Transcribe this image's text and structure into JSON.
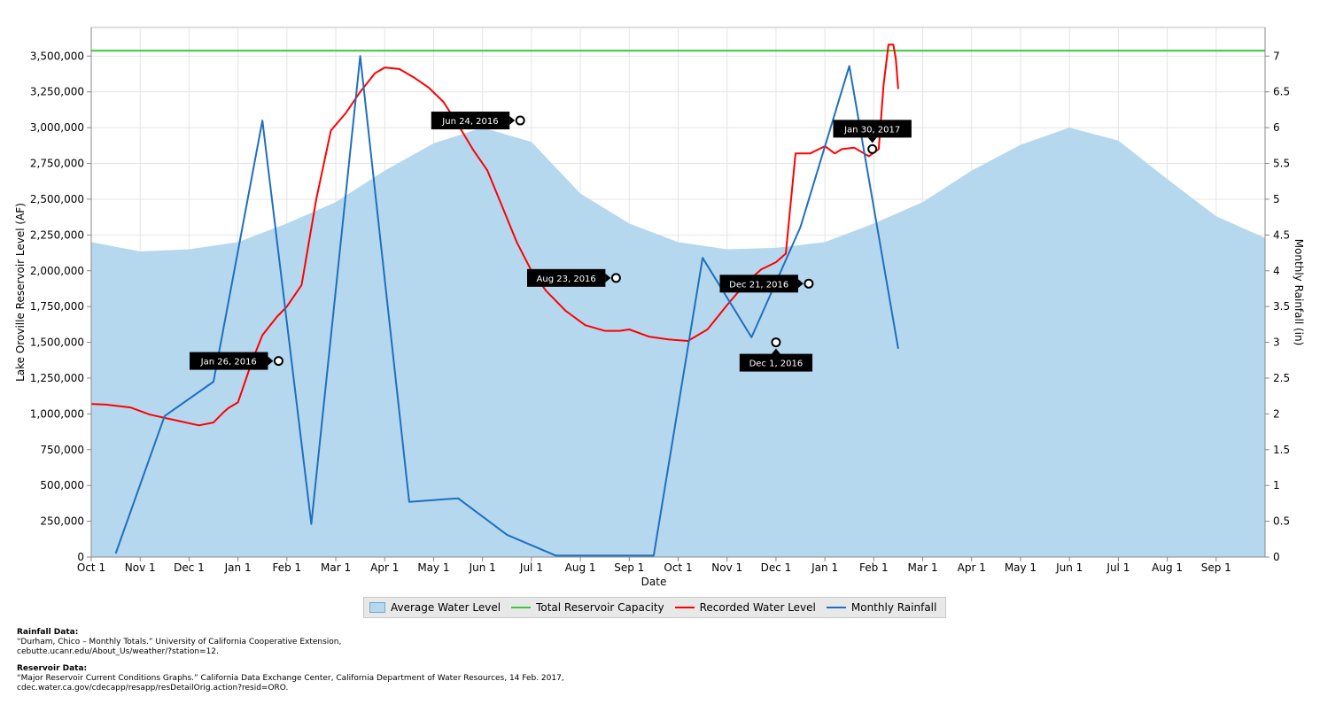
{
  "chart_data": {
    "type": "line",
    "xlabel": "Date",
    "ylabel_left": "Lake Oroville Reservoir Level (AF)",
    "ylabel_right": "Monthly Rainfall (in)",
    "x_ticks": [
      "Oct 1",
      "Nov 1",
      "Dec 1",
      "Jan 1",
      "Feb 1",
      "Mar 1",
      "Apr 1",
      "May 1",
      "Jun 1",
      "Jul 1",
      "Aug 1",
      "Sep 1",
      "Oct 1",
      "Nov 1",
      "Dec 1",
      "Jan 1",
      "Feb 1",
      "Mar 1",
      "Apr 1",
      "May 1",
      "Jun 1",
      "Jul 1",
      "Aug 1",
      "Sep 1"
    ],
    "x_tick_months": [
      0,
      1,
      2,
      3,
      4,
      5,
      6,
      7,
      8,
      9,
      10,
      11,
      12,
      13,
      14,
      15,
      16,
      17,
      18,
      19,
      20,
      21,
      22,
      23
    ],
    "xlim": [
      0,
      24
    ],
    "y_left_ticks": [
      "0",
      "250,000",
      "500,000",
      "750,000",
      "1,000,000",
      "1,250,000",
      "1,500,000",
      "1,750,000",
      "2,000,000",
      "2,250,000",
      "2,500,000",
      "2,750,000",
      "3,000,000",
      "3,250,000",
      "3,500,000"
    ],
    "ylim_left": [
      0,
      3700000
    ],
    "y_right_ticks": [
      "0",
      "0.5",
      "1",
      "1.5",
      "2",
      "2.5",
      "3",
      "3.5",
      "4",
      "4.5",
      "5",
      "5.5",
      "6",
      "6.5",
      "7"
    ],
    "ylim_right": [
      0,
      7.4
    ],
    "series": [
      {
        "name": "Average Water Level",
        "type": "area",
        "axis": "left",
        "color": "#b5d8ef",
        "x": [
          0,
          1,
          2,
          3,
          4,
          5,
          6,
          7,
          8,
          9,
          10,
          11,
          12,
          13,
          14,
          15,
          16,
          17,
          18,
          19,
          20,
          21,
          22,
          23,
          24
        ],
        "y": [
          2200000,
          2135000,
          2150000,
          2200000,
          2330000,
          2480000,
          2700000,
          2890000,
          3000000,
          2900000,
          2540000,
          2330000,
          2200000,
          2150000,
          2160000,
          2200000,
          2330000,
          2480000,
          2700000,
          2880000,
          3000000,
          2910000,
          2640000,
          2380000,
          2230000
        ]
      },
      {
        "name": "Total Reservoir Capacity",
        "type": "line",
        "axis": "left",
        "color": "#3fc43f",
        "x": [
          0,
          24
        ],
        "y": [
          3537000,
          3537000
        ]
      },
      {
        "name": "Recorded Water Level",
        "type": "line",
        "axis": "left",
        "color": "#ff0000",
        "x": [
          0,
          0.3,
          0.8,
          1.2,
          1.8,
          2.2,
          2.5,
          2.7,
          2.8,
          3.0,
          3.3,
          3.5,
          3.8,
          4.0,
          4.3,
          4.6,
          4.9,
          5.2,
          5.5,
          5.8,
          6.0,
          6.3,
          6.6,
          6.9,
          7.2,
          7.5,
          7.8,
          8.1,
          8.4,
          8.7,
          9.0,
          9.3,
          9.7,
          10.1,
          10.5,
          10.8,
          11.0,
          11.4,
          11.8,
          12.2,
          12.6,
          13.0,
          13.4,
          13.7,
          14.0,
          14.2,
          14.4,
          14.7,
          15.0,
          15.2,
          15.35,
          15.6,
          15.9,
          16.1,
          16.2,
          16.3,
          16.4,
          16.45,
          16.5
        ],
        "y": [
          1070000,
          1065000,
          1045000,
          995000,
          950000,
          920000,
          940000,
          1010000,
          1040000,
          1080000,
          1380000,
          1550000,
          1680000,
          1750000,
          1900000,
          2500000,
          2980000,
          3100000,
          3250000,
          3380000,
          3420000,
          3410000,
          3350000,
          3280000,
          3180000,
          3020000,
          2850000,
          2700000,
          2450000,
          2200000,
          2000000,
          1860000,
          1720000,
          1620000,
          1580000,
          1580000,
          1590000,
          1540000,
          1520000,
          1510000,
          1590000,
          1760000,
          1920000,
          2010000,
          2060000,
          2120000,
          2820000,
          2820000,
          2870000,
          2820000,
          2850000,
          2860000,
          2800000,
          2850000,
          3300000,
          3580000,
          3580000,
          3480000,
          3270000
        ]
      },
      {
        "name": "Monthly Rainfall",
        "type": "line",
        "axis": "right",
        "color": "#1f6fbf",
        "x": [
          0.5,
          1.5,
          2.5,
          3.5,
          4.5,
          5.5,
          6.5,
          7.5,
          8.5,
          9.5,
          10.5,
          11.5,
          12.5,
          13.5,
          14.5,
          15.5,
          16.5
        ],
        "y": [
          0.05,
          1.97,
          2.45,
          6.1,
          0.46,
          7.0,
          0.77,
          0.82,
          0.31,
          0.02,
          0.02,
          0.02,
          4.18,
          3.07,
          4.61,
          6.86,
          2.91
        ]
      }
    ],
    "annotations": [
      {
        "label": "Jan 26, 2016",
        "x": 3.83,
        "y": 1370000,
        "side": "left"
      },
      {
        "label": "Jun 24, 2016",
        "x": 8.77,
        "y": 3050000,
        "side": "left"
      },
      {
        "label": "Aug 23, 2016",
        "x": 10.73,
        "y": 1950000,
        "side": "left"
      },
      {
        "label": "Dec 1, 2016",
        "x": 14.0,
        "y": 1500000,
        "side": "below"
      },
      {
        "label": "Dec 21, 2016",
        "x": 14.67,
        "y": 1910000,
        "side": "left"
      },
      {
        "label": "Jan 30, 2017",
        "x": 15.97,
        "y": 2850000,
        "side": "above"
      }
    ],
    "grid": true,
    "legend_position": "bottom"
  },
  "sources": {
    "rainfall_heading": "Rainfall Data:",
    "rainfall_line1": "“Durham, Chico – Monthly Totals.” University of California Cooperative Extension,",
    "rainfall_line2": "cebutte.ucanr.edu/About_Us/weather/?station=12.",
    "reservoir_heading": "Reservoir Data:",
    "reservoir_line1": "“Major Reservoir Current Conditions Graphs.” California Data Exchange Center, California Department of Water Resources, 14 Feb. 2017,",
    "reservoir_line2": "cdec.water.ca.gov/cdecapp/resapp/resDetailOrig.action?resid=ORO."
  }
}
